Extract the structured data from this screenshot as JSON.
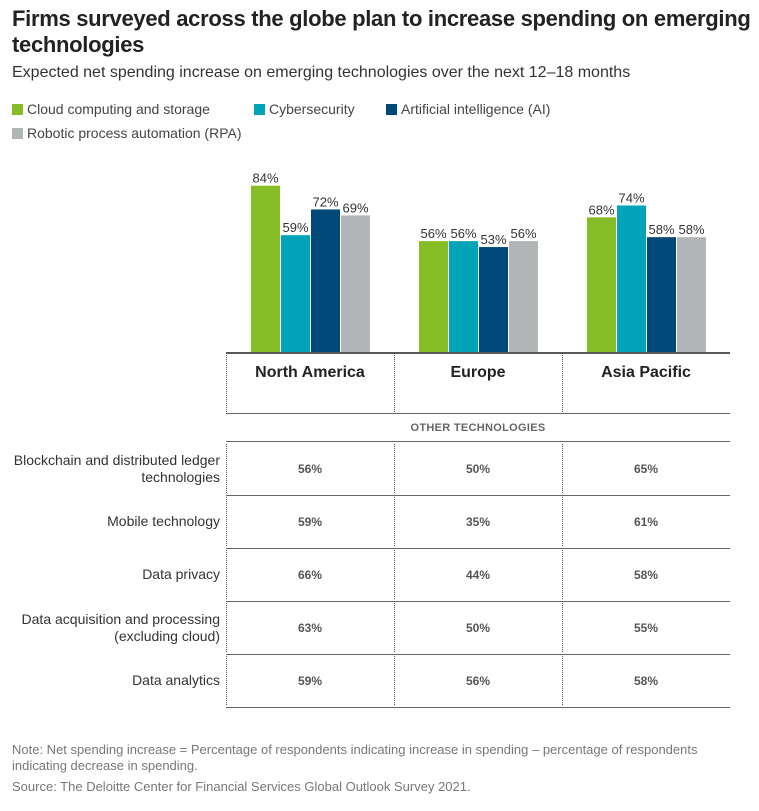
{
  "title": "Firms surveyed across the globe plan to increase spending on emerging technologies",
  "subtitle": "Expected net spending increase on emerging technologies over the next 12–18 months",
  "legend": [
    {
      "label": "Cloud computing and storage",
      "color": "#86BC25"
    },
    {
      "label": "Cybersecurity",
      "color": "#00A3B8"
    },
    {
      "label": "Artificial intelligence (AI)",
      "color": "#004878"
    },
    {
      "label": "Robotic process automation (RPA)",
      "color": "#B2B5B6"
    }
  ],
  "chart_data": {
    "type": "bar",
    "title": "Firms surveyed across the globe plan to increase spending on emerging technologies",
    "subtitle": "Expected net spending increase on emerging technologies over the next 12–18 months",
    "categories": [
      "North America",
      "Europe",
      "Asia Pacific"
    ],
    "series": [
      {
        "name": "Cloud computing and storage",
        "color": "#86BC25",
        "values": [
          84,
          56,
          68
        ],
        "labels": [
          "84%",
          "56%",
          "68%"
        ]
      },
      {
        "name": "Cybersecurity",
        "color": "#00A3B8",
        "values": [
          59,
          56,
          74
        ],
        "labels": [
          "59%",
          "56%",
          "74%"
        ]
      },
      {
        "name": "Artificial intelligence (AI)",
        "color": "#004878",
        "values": [
          72,
          53,
          58
        ],
        "labels": [
          "72%",
          "53%",
          "58%"
        ]
      },
      {
        "name": "Robotic process automation (RPA)",
        "color": "#B2B5B6",
        "values": [
          69,
          56,
          58
        ],
        "labels": [
          "69%",
          "56%",
          "58%"
        ]
      }
    ],
    "xlabel": "",
    "ylabel": "",
    "ylim": [
      0,
      100
    ],
    "grid": false,
    "legend_position": "top-left",
    "table": {
      "section_title": "OTHER TECHNOLOGIES",
      "columns": [
        "North America",
        "Europe",
        "Asia Pacific"
      ],
      "rows": [
        {
          "label": "Blockchain and distributed ledger technologies",
          "values": [
            "56%",
            "50%",
            "65%"
          ]
        },
        {
          "label": "Mobile technology",
          "values": [
            "59%",
            "35%",
            "61%"
          ]
        },
        {
          "label": "Data privacy",
          "values": [
            "66%",
            "44%",
            "58%"
          ]
        },
        {
          "label": "Data acquisition and processing (excluding cloud)",
          "values": [
            "63%",
            "50%",
            "55%"
          ]
        },
        {
          "label": "Data analytics",
          "values": [
            "59%",
            "56%",
            "58%"
          ]
        }
      ]
    }
  },
  "note": "Note: Net spending increase = Percentage of respondents indicating increase in spending – percentage of respondents indicating decrease in spending.",
  "source": "Source: The Deloitte Center for Financial Services Global Outlook Survey 2021."
}
